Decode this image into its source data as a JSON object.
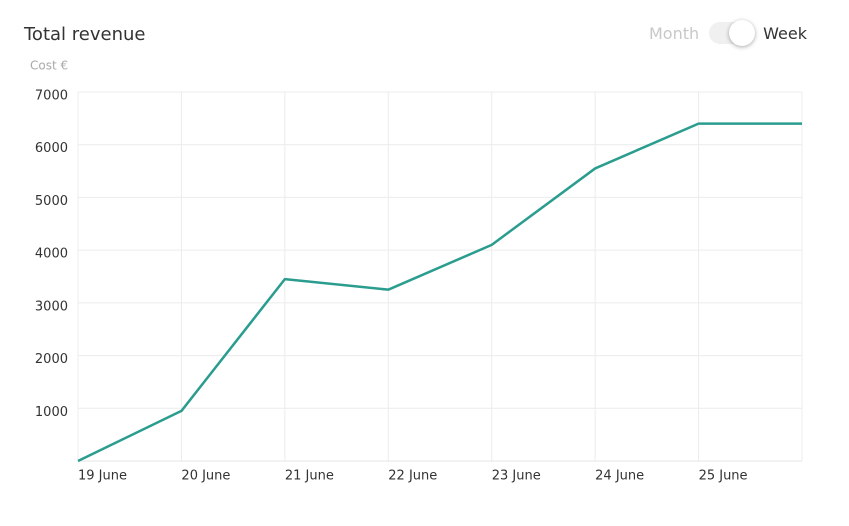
{
  "chart_data": {
    "type": "line",
    "title": "Total revenue",
    "y_label": "Cost €",
    "categories": [
      "19 June",
      "20 June",
      "21 June",
      "22 June",
      "23 June",
      "24 June",
      "25 June",
      null
    ],
    "series": [
      {
        "name": "Revenue",
        "color": "#2a9d8f",
        "values": [
          0,
          950,
          3450,
          3250,
          4100,
          5550,
          6400,
          6400
        ]
      }
    ],
    "ylim": [
      0,
      7000
    ],
    "yticks": [
      1000,
      2000,
      3000,
      4000,
      5000,
      6000,
      7000
    ],
    "grid": true
  },
  "controls": {
    "options": [
      "Month",
      "Week"
    ],
    "selected": "Week"
  }
}
